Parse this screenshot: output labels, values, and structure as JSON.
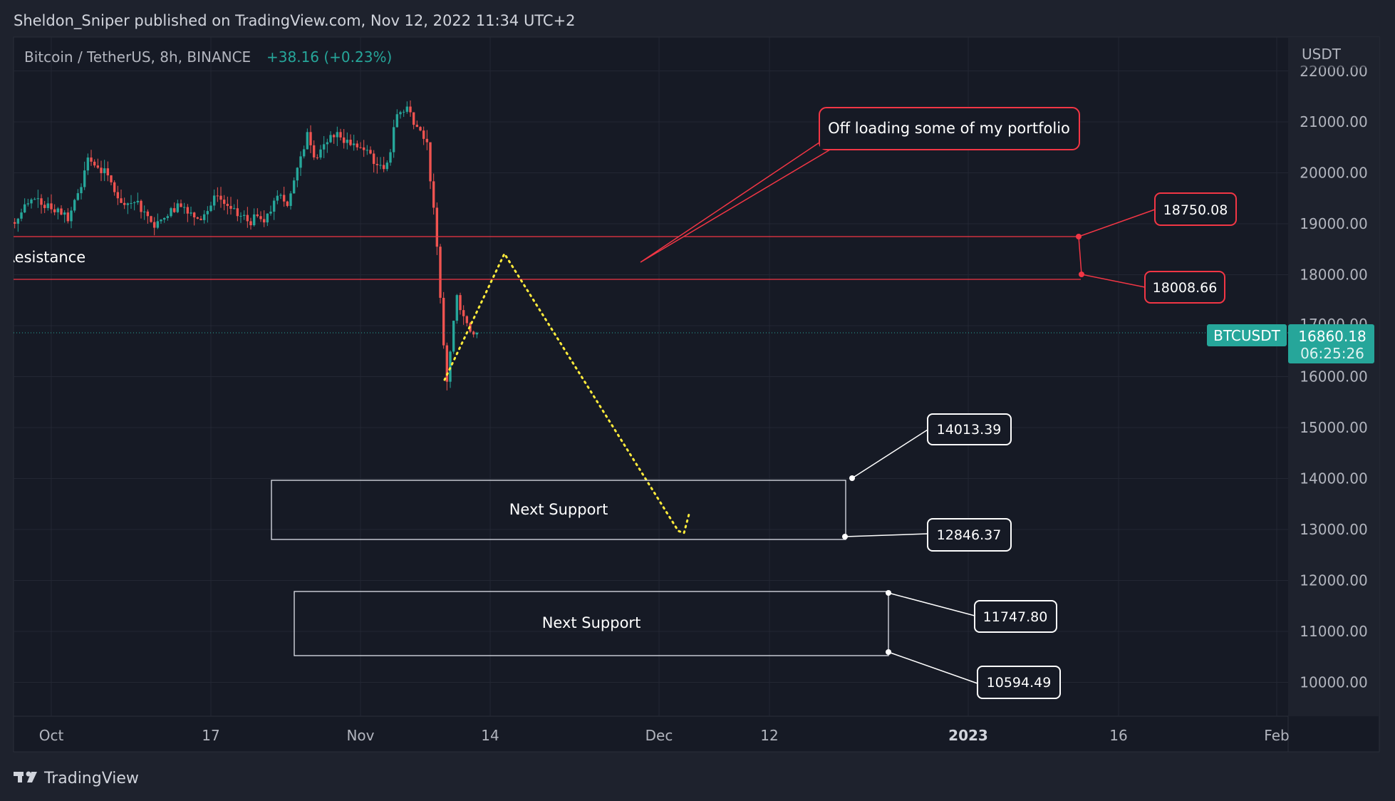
{
  "header": {
    "published": "Sheldon_Sniper published on TradingView.com, Nov 12, 2022 11:34 UTC+2"
  },
  "legend": {
    "symbol": "Bitcoin / TetherUS, 8h, BINANCE",
    "change": "+38.16 (+0.23%)"
  },
  "price_axis": {
    "currency": "USDT",
    "ticks": [
      "22000.00",
      "21000.00",
      "20000.00",
      "19000.00",
      "18000.00",
      "17000.00",
      "16000.00",
      "15000.00",
      "14000.00",
      "13000.00",
      "12000.00",
      "11000.00",
      "10000.00"
    ]
  },
  "time_axis": {
    "ticks": [
      "Oct",
      "17",
      "Nov",
      "14",
      "Dec",
      "12",
      "2023",
      "16",
      "Feb"
    ]
  },
  "current": {
    "symbol_label": "BTCUSDT",
    "price": "16860.18",
    "countdown": "06:25:26"
  },
  "annotations": {
    "resistance_label": "Resistance",
    "callout": "Off loading some of my portfolio",
    "resistance_high": "18750.08",
    "resistance_low": "18008.66",
    "support1_label": "Next Support",
    "support1_high": "14013.39",
    "support1_low": "12846.37",
    "support2_label": "Next Support",
    "support2_high": "11747.80",
    "support2_low": "10594.49"
  },
  "footer": {
    "brand": "TradingView"
  },
  "colors": {
    "up": "#26a69a",
    "down": "#ef5350",
    "resistance": "#f23645",
    "projection": "#ffeb3b",
    "price_tag": "#26a69a"
  },
  "chart_data": {
    "type": "candlestick",
    "interval": "8h",
    "start_date": "2022-09-27",
    "daily_close": [
      19100,
      19400,
      19500,
      19400,
      19300,
      19050,
      19600,
      20300,
      20100,
      19950,
      19500,
      19400,
      19450,
      19150,
      19050,
      19150,
      19400,
      19200,
      19100,
      19250,
      19550,
      19350,
      19150,
      19050,
      19150,
      19200,
      19550,
      19350,
      20100,
      20800,
      20300,
      20600,
      20800,
      20650,
      20500,
      20450,
      20150,
      20200,
      21150,
      21300,
      20900,
      20600,
      18550,
      15900,
      17600,
      17050,
      16860.18
    ],
    "ylim": [
      9500,
      22200
    ]
  }
}
